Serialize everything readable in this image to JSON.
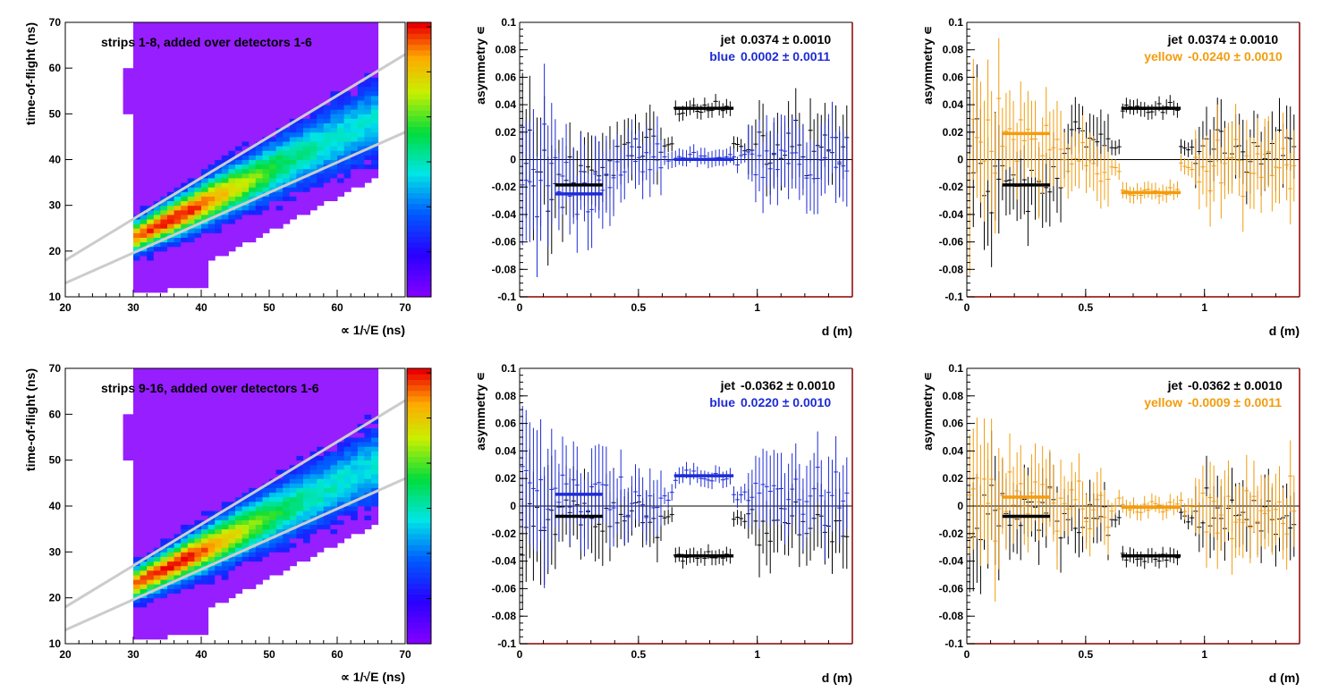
{
  "colors": {
    "blue": "#1d2bd6",
    "yellow": "#f39c0d",
    "jet": "#000000",
    "frame": "#8b0000",
    "band_line": "#cccccc"
  },
  "chart_data": [
    {
      "id": "tof-top",
      "type": "heatmap",
      "title": "strips 1-8, added over detectors 1-6",
      "xlabel": "∝ 1/√E (ns)",
      "ylabel": "time-of-flight (ns)",
      "xlim": [
        20,
        70
      ],
      "ylim": [
        10,
        70
      ],
      "xticks": [
        "20",
        "30",
        "40",
        "50",
        "60",
        "70"
      ],
      "yticks": [
        "10",
        "20",
        "30",
        "40",
        "50",
        "60",
        "70"
      ],
      "band": {
        "peak_x": 35,
        "peak_y": 26.5
      },
      "cut_lines": [
        [
          [
            20,
            18
          ],
          [
            70,
            63
          ]
        ],
        [
          [
            20,
            13
          ],
          [
            70,
            46
          ]
        ]
      ]
    },
    {
      "id": "asym-top-blue",
      "type": "scatter",
      "xlabel": "d (m)",
      "ylabel": "asymmetry ∊",
      "xlim": [
        0,
        1.4
      ],
      "ylim": [
        -0.1,
        0.1
      ],
      "xticks": [
        "0",
        "0.5",
        "1"
      ],
      "yticks": [
        "-0.1",
        "-0.08",
        "-0.06",
        "-0.04",
        "-0.02",
        "0",
        "0.02",
        "0.04",
        "0.06",
        "0.08",
        "0.1"
      ],
      "legend": [
        {
          "label": "jet",
          "value": "0.0374 ± 0.0010",
          "color": "#000000"
        },
        {
          "label": "blue",
          "value": "0.0002 ± 0.0011",
          "color": "#1d2bd6"
        }
      ],
      "series": [
        {
          "color": "#000000",
          "center": 0.0374,
          "base_error": 0.018,
          "fits": [
            {
              "x": [
                0.15,
                0.35
              ],
              "y": -0.0185
            },
            {
              "x": [
                0.65,
                0.9
              ],
              "y": 0.0374
            }
          ]
        },
        {
          "color": "#1d2bd6",
          "center": 0.0002,
          "base_error": 0.02,
          "fits": [
            {
              "x": [
                0.15,
                0.35
              ],
              "y": -0.025
            },
            {
              "x": [
                0.65,
                0.9
              ],
              "y": 0.0002
            }
          ]
        }
      ]
    },
    {
      "id": "asym-top-yellow",
      "type": "scatter",
      "xlabel": "d (m)",
      "ylabel": "asymmetry ∊",
      "xlim": [
        0,
        1.4
      ],
      "ylim": [
        -0.1,
        0.1
      ],
      "xticks": [
        "0",
        "0.5",
        "1"
      ],
      "yticks": [
        "-0.1",
        "-0.08",
        "-0.06",
        "-0.04",
        "-0.02",
        "0",
        "0.02",
        "0.04",
        "0.06",
        "0.08",
        "0.1"
      ],
      "legend": [
        {
          "label": "jet",
          "value": "0.0374 ± 0.0010",
          "color": "#000000"
        },
        {
          "label": "yellow",
          "value": "-0.0240 ± 0.0010",
          "color": "#f39c0d"
        }
      ],
      "series": [
        {
          "color": "#000000",
          "center": 0.0374,
          "base_error": 0.018,
          "fits": [
            {
              "x": [
                0.15,
                0.35
              ],
              "y": -0.0185
            },
            {
              "x": [
                0.65,
                0.9
              ],
              "y": 0.0374
            }
          ]
        },
        {
          "color": "#f39c0d",
          "center": -0.024,
          "base_error": 0.02,
          "fits": [
            {
              "x": [
                0.15,
                0.35
              ],
              "y": 0.019
            },
            {
              "x": [
                0.65,
                0.9
              ],
              "y": -0.024
            }
          ]
        }
      ]
    },
    {
      "id": "tof-bottom",
      "type": "heatmap",
      "title": "strips 9-16, added over detectors 1-6",
      "xlabel": "∝ 1/√E (ns)",
      "ylabel": "time-of-flight (ns)",
      "xlim": [
        20,
        70
      ],
      "ylim": [
        10,
        70
      ],
      "xticks": [
        "20",
        "30",
        "40",
        "50",
        "60",
        "70"
      ],
      "yticks": [
        "10",
        "20",
        "30",
        "40",
        "50",
        "60",
        "70"
      ],
      "band": {
        "peak_x": 35,
        "peak_y": 26.5
      },
      "cut_lines": [
        [
          [
            20,
            18
          ],
          [
            70,
            63
          ]
        ],
        [
          [
            20,
            13
          ],
          [
            70,
            46
          ]
        ]
      ]
    },
    {
      "id": "asym-bottom-blue",
      "type": "scatter",
      "xlabel": "d (m)",
      "ylabel": "asymmetry ∊",
      "xlim": [
        0,
        1.4
      ],
      "ylim": [
        -0.1,
        0.1
      ],
      "xticks": [
        "0",
        "0.5",
        "1"
      ],
      "yticks": [
        "-0.1",
        "-0.08",
        "-0.06",
        "-0.04",
        "-0.02",
        "0",
        "0.02",
        "0.04",
        "0.06",
        "0.08",
        "0.1"
      ],
      "legend": [
        {
          "label": "jet",
          "value": "-0.0362 ± 0.0010",
          "color": "#000000"
        },
        {
          "label": "blue",
          "value": "0.0220 ± 0.0010",
          "color": "#1d2bd6"
        }
      ],
      "series": [
        {
          "color": "#000000",
          "center": -0.0362,
          "base_error": 0.018,
          "fits": [
            {
              "x": [
                0.15,
                0.35
              ],
              "y": -0.0075
            },
            {
              "x": [
                0.65,
                0.9
              ],
              "y": -0.0362
            }
          ]
        },
        {
          "color": "#1d2bd6",
          "center": 0.022,
          "base_error": 0.02,
          "fits": [
            {
              "x": [
                0.15,
                0.35
              ],
              "y": 0.0085
            },
            {
              "x": [
                0.65,
                0.9
              ],
              "y": 0.022
            }
          ]
        }
      ]
    },
    {
      "id": "asym-bottom-yellow",
      "type": "scatter",
      "xlabel": "d (m)",
      "ylabel": "asymmetry ∊",
      "xlim": [
        0,
        1.4
      ],
      "ylim": [
        -0.1,
        0.1
      ],
      "xticks": [
        "0",
        "0.5",
        "1"
      ],
      "yticks": [
        "-0.1",
        "-0.08",
        "-0.06",
        "-0.04",
        "-0.02",
        "0",
        "0.02",
        "0.04",
        "0.06",
        "0.08",
        "0.1"
      ],
      "legend": [
        {
          "label": "jet",
          "value": "-0.0362 ± 0.0010",
          "color": "#000000"
        },
        {
          "label": "yellow",
          "value": "-0.0009 ± 0.0011",
          "color": "#f39c0d"
        }
      ],
      "series": [
        {
          "color": "#000000",
          "center": -0.0362,
          "base_error": 0.018,
          "fits": [
            {
              "x": [
                0.15,
                0.35
              ],
              "y": -0.0075
            },
            {
              "x": [
                0.65,
                0.9
              ],
              "y": -0.0362
            }
          ]
        },
        {
          "color": "#f39c0d",
          "center": -0.0009,
          "base_error": 0.02,
          "fits": [
            {
              "x": [
                0.15,
                0.35
              ],
              "y": 0.0065
            },
            {
              "x": [
                0.65,
                0.9
              ],
              "y": -0.0009
            }
          ]
        }
      ]
    }
  ]
}
